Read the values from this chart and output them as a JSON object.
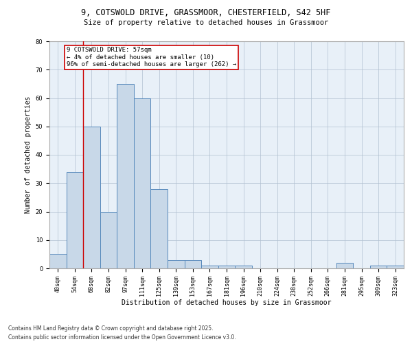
{
  "title_line1": "9, COTSWOLD DRIVE, GRASSMOOR, CHESTERFIELD, S42 5HF",
  "title_line2": "Size of property relative to detached houses in Grassmoor",
  "xlabel": "Distribution of detached houses by size in Grassmoor",
  "ylabel": "Number of detached properties",
  "categories": [
    "40sqm",
    "54sqm",
    "68sqm",
    "82sqm",
    "97sqm",
    "111sqm",
    "125sqm",
    "139sqm",
    "153sqm",
    "167sqm",
    "181sqm",
    "196sqm",
    "210sqm",
    "224sqm",
    "238sqm",
    "252sqm",
    "266sqm",
    "281sqm",
    "295sqm",
    "309sqm",
    "323sqm"
  ],
  "values": [
    5,
    34,
    50,
    20,
    65,
    60,
    28,
    3,
    3,
    1,
    1,
    1,
    0,
    0,
    0,
    0,
    0,
    2,
    0,
    1,
    1
  ],
  "bar_color": "#c8d8e8",
  "bar_edge_color": "#5588bb",
  "red_line_x": 1.5,
  "annotation_text": "9 COTSWOLD DRIVE: 57sqm\n← 4% of detached houses are smaller (10)\n96% of semi-detached houses are larger (262) →",
  "annotation_box_color": "#ffffff",
  "annotation_box_edge_color": "#cc0000",
  "ylim": [
    0,
    80
  ],
  "yticks": [
    0,
    10,
    20,
    30,
    40,
    50,
    60,
    70,
    80
  ],
  "background_color": "#e8f0f8",
  "footer_line1": "Contains HM Land Registry data © Crown copyright and database right 2025.",
  "footer_line2": "Contains public sector information licensed under the Open Government Licence v3.0.",
  "title_fontsize": 8.5,
  "subtitle_fontsize": 7.5,
  "axis_label_fontsize": 7,
  "tick_fontsize": 6,
  "annotation_fontsize": 6.5,
  "footer_fontsize": 5.5
}
